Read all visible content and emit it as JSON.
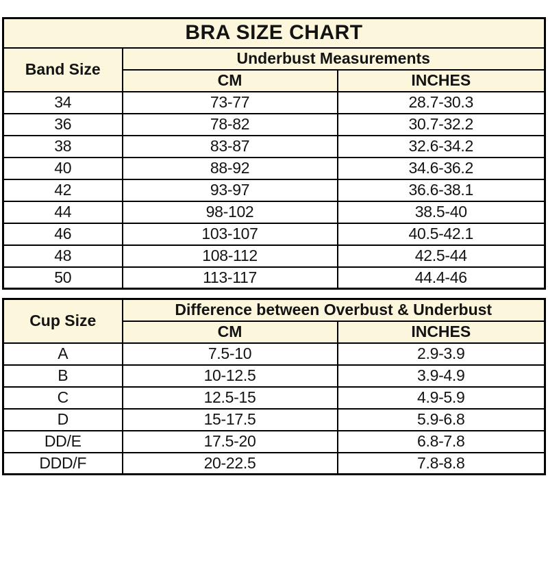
{
  "title": "BRA SIZE CHART",
  "colors": {
    "header_bg": "#FBF6DC",
    "border": "#000000",
    "text": "#131313",
    "row_bg": "#FFFFFF"
  },
  "band_table": {
    "row_header": "Band Size",
    "group_header": "Underbust Measurements",
    "col_headers": [
      "CM",
      "INCHES"
    ],
    "rows": [
      [
        "34",
        "73-77",
        "28.7-30.3"
      ],
      [
        "36",
        "78-82",
        "30.7-32.2"
      ],
      [
        "38",
        "83-87",
        "32.6-34.2"
      ],
      [
        "40",
        "88-92",
        "34.6-36.2"
      ],
      [
        "42",
        "93-97",
        "36.6-38.1"
      ],
      [
        "44",
        "98-102",
        "38.5-40"
      ],
      [
        "46",
        "103-107",
        "40.5-42.1"
      ],
      [
        "48",
        "108-112",
        "42.5-44"
      ],
      [
        "50",
        "113-117",
        "44.4-46"
      ]
    ]
  },
  "cup_table": {
    "row_header": "Cup Size",
    "group_header": "Difference between Overbust & Underbust",
    "col_headers": [
      "CM",
      "INCHES"
    ],
    "rows": [
      [
        "A",
        "7.5-10",
        "2.9-3.9"
      ],
      [
        "B",
        "10-12.5",
        "3.9-4.9"
      ],
      [
        "C",
        "12.5-15",
        "4.9-5.9"
      ],
      [
        "D",
        "15-17.5",
        "5.9-6.8"
      ],
      [
        "DD/E",
        "17.5-20",
        "6.8-7.8"
      ],
      [
        "DDD/F",
        "20-22.5",
        "7.8-8.8"
      ]
    ]
  }
}
